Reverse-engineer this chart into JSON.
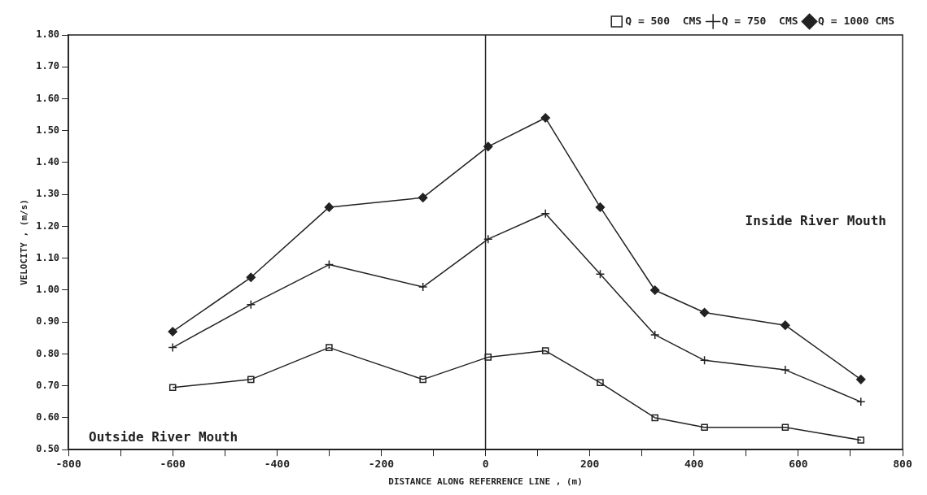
{
  "chart_data": {
    "type": "line",
    "xlabel": "DISTANCE ALONG REFERRENCE LINE , (m)",
    "ylabel": "VELOCITY , (m/s)",
    "x": [
      -600,
      -450,
      -300,
      -120,
      5,
      115,
      220,
      325,
      420,
      575,
      720
    ],
    "series": [
      {
        "name": "Q = 500  CMS",
        "color": "#222222",
        "marker": "square",
        "values": [
          0.695,
          0.72,
          0.82,
          0.72,
          0.79,
          0.81,
          0.71,
          0.6,
          0.57,
          0.57,
          0.53
        ]
      },
      {
        "name": "Q = 750  CMS",
        "color": "#222222",
        "marker": "cross",
        "values": [
          0.82,
          0.955,
          1.08,
          1.01,
          1.16,
          1.24,
          1.05,
          0.86,
          0.78,
          0.75,
          0.65
        ]
      },
      {
        "name": "Q = 1000 CMS",
        "color": "#222222",
        "marker": "diamond",
        "values": [
          0.87,
          1.04,
          1.26,
          1.29,
          1.45,
          1.54,
          1.26,
          1.0,
          0.93,
          0.89,
          0.72
        ]
      }
    ],
    "xlim": [
      -800,
      800
    ],
    "xticks": [
      -800,
      {
        "value": -700,
        "label": null
      },
      -600,
      {
        "value": -500,
        "label": null
      },
      -400,
      {
        "value": -300,
        "label": null
      },
      -200,
      {
        "value": -100,
        "label": null
      },
      0,
      {
        "value": 100,
        "label": null
      },
      200,
      {
        "value": 300,
        "label": null
      },
      400,
      {
        "value": 500,
        "label": null
      },
      600,
      {
        "value": 700,
        "label": null
      },
      800
    ],
    "ylim": [
      0.5,
      1.8
    ],
    "yticks": [
      {
        "value": 0.5,
        "label": "0.50"
      },
      {
        "value": 0.6,
        "label": "0.60"
      },
      {
        "value": 0.7,
        "label": "0.70"
      },
      {
        "value": 0.8,
        "label": "0.80"
      },
      {
        "value": 0.9,
        "label": "0.90"
      },
      {
        "value": 1.0,
        "label": "1.00"
      },
      {
        "value": 1.1,
        "label": "1.10"
      },
      {
        "value": 1.2,
        "label": "1.20"
      },
      {
        "value": 1.3,
        "label": "1.30"
      },
      {
        "value": 1.4,
        "label": "1.40"
      },
      {
        "value": 1.5,
        "label": "1.50"
      },
      {
        "value": 1.6,
        "label": "1.60"
      },
      {
        "value": 1.7,
        "label": "1.70"
      },
      {
        "value": 1.8,
        "label": "1.80"
      }
    ],
    "ref_lines": [
      {
        "axis": "x",
        "value": 0
      }
    ],
    "annotations": [
      "Inside River Mouth",
      "Outside River Mouth"
    ],
    "legend": "top right",
    "grid": false,
    "line_style": "solid"
  }
}
